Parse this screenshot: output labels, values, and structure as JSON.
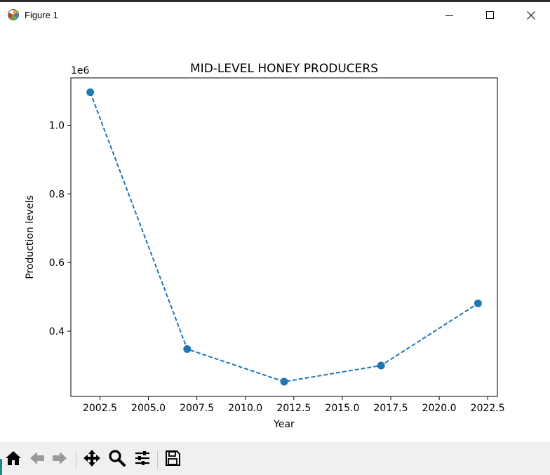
{
  "window": {
    "title": "Figure 1",
    "icons": {
      "app": "matplotlib-icon",
      "minimize": "minimize-icon",
      "maximize": "maximize-icon",
      "close": "close-icon"
    }
  },
  "toolbar": {
    "buttons": [
      {
        "name": "home-button",
        "icon": "home-icon"
      },
      {
        "name": "back-button",
        "icon": "arrow-left-icon"
      },
      {
        "name": "forward-button",
        "icon": "arrow-right-icon"
      },
      {
        "name": "pan-button",
        "icon": "move-icon"
      },
      {
        "name": "zoom-button",
        "icon": "magnifier-icon"
      },
      {
        "name": "configure-subplots-button",
        "icon": "sliders-icon"
      },
      {
        "name": "save-button",
        "icon": "floppy-disk-icon"
      }
    ]
  },
  "chart_data": {
    "type": "line",
    "title": "MID-LEVEL HONEY PRODUCERS",
    "xlabel": "Year",
    "ylabel": "Production levels",
    "y_offset_label": "1e6",
    "x": [
      2002,
      2007,
      2012,
      2017,
      2022
    ],
    "series": [
      {
        "values": [
          1096000,
          348000,
          253000,
          300000,
          481000
        ],
        "color": "#1f77b4",
        "linestyle": "dashed",
        "marker": "circle"
      }
    ],
    "xlim": [
      2001.0,
      2023.0
    ],
    "ylim": [
      210000,
      1138000
    ],
    "x_ticks": [
      2002.5,
      2005.0,
      2007.5,
      2010.0,
      2012.5,
      2015.0,
      2017.5,
      2020.0,
      2022.5
    ],
    "x_tick_labels": [
      "2002.5",
      "2005.0",
      "2007.5",
      "2010.0",
      "2012.5",
      "2015.0",
      "2017.5",
      "2020.0",
      "2022.5"
    ],
    "y_ticks": [
      400000,
      600000,
      800000,
      1000000
    ],
    "y_tick_labels": [
      "0.4",
      "0.6",
      "0.8",
      "1.0"
    ],
    "grid": false,
    "legend": "none"
  }
}
